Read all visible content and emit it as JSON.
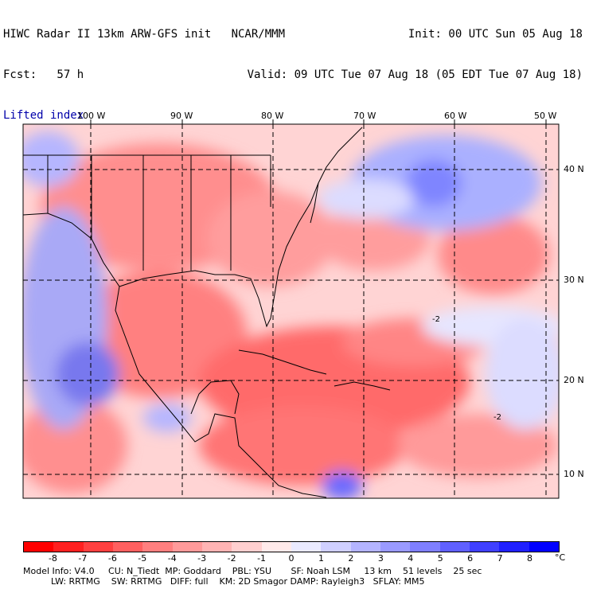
{
  "header": {
    "title": "HIWC Radar II 13km ARW-GFS init   NCAR/MMM",
    "forecast": "Fcst:   57 h",
    "field": "Lifted index",
    "init": "Init: 00 UTC Sun 05 Aug 18",
    "valid": "Valid: 09 UTC Tue 07 Aug 18 (05 EDT Tue 07 Aug 18)"
  },
  "map": {
    "lon_labels": [
      "100 W",
      "90 W",
      "80 W",
      "70 W",
      "60 W",
      "50 W"
    ],
    "lat_labels": [
      "40 N",
      "30 N",
      "20 N",
      "10 N"
    ],
    "contour_labels": [
      "-2",
      "-2"
    ]
  },
  "colorbar": {
    "ticks": [
      "-8",
      "-7",
      "-6",
      "-5",
      "-4",
      "-3",
      "-2",
      "-1",
      "0",
      "1",
      "2",
      "3",
      "4",
      "5",
      "6",
      "7",
      "8"
    ],
    "unit": "°C",
    "colors": [
      "#ff0000",
      "#ff2020",
      "#ff4040",
      "#ff6060",
      "#ff7f7f",
      "#ff9a9a",
      "#ffb4b4",
      "#ffcfcf",
      "#ffeaea",
      "#eaeaff",
      "#cfcfff",
      "#b4b4ff",
      "#9a9aff",
      "#7f7fff",
      "#6060ff",
      "#4040ff",
      "#2020ff",
      "#0000ff"
    ]
  },
  "model_info": {
    "line1": "Model Info: V4.0     CU: N_Tiedt  MP: Goddard    PBL: YSU       SF: Noah LSM     13 km    51 levels    25 sec",
    "line2": "          LW: RRTMG    SW: RRTMG   DIFF: full    KM: 2D Smagor DAMP: Rayleigh3   SFLAY: MM5"
  }
}
